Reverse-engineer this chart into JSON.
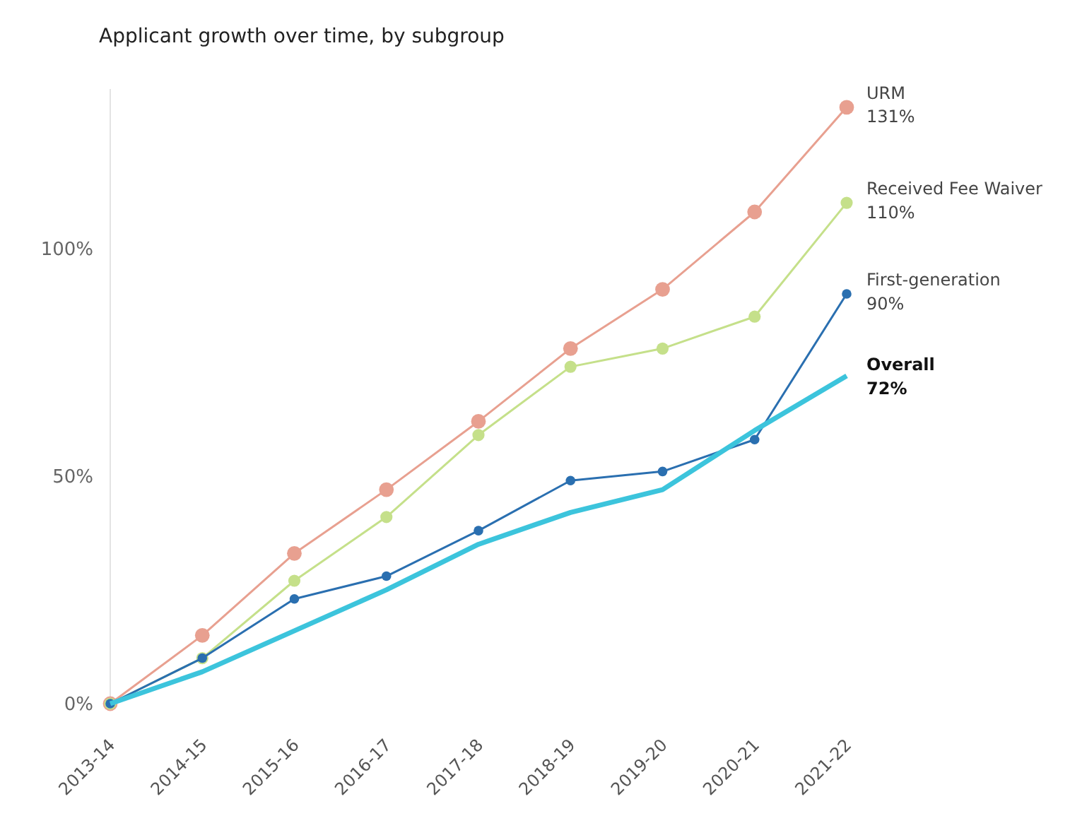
{
  "chart_data": {
    "type": "line",
    "title": "Applicant growth over time, by subgroup",
    "categories": [
      "2013-14",
      "2014-15",
      "2015-16",
      "2016-17",
      "2017-18",
      "2018-19",
      "2019-20",
      "2020-21",
      "2021-22"
    ],
    "series": [
      {
        "name": "URM",
        "color": "#e8a090",
        "values": [
          0,
          15,
          33,
          47,
          62,
          78,
          91,
          108,
          131
        ],
        "value_labels": [
          null,
          null,
          null,
          null,
          null,
          null,
          null,
          null,
          "131%"
        ]
      },
      {
        "name": "Received Fee Waiver",
        "color": "#c5e08a",
        "values": [
          0,
          10,
          27,
          41,
          59,
          74,
          78,
          85,
          110
        ],
        "value_labels": [
          null,
          null,
          null,
          null,
          null,
          null,
          null,
          null,
          "110%"
        ]
      },
      {
        "name": "First-generation",
        "color": "#2a6fb0",
        "values": [
          0,
          10,
          23,
          28,
          38,
          49,
          51,
          58,
          90
        ],
        "value_labels": [
          null,
          null,
          null,
          null,
          null,
          null,
          null,
          null,
          "90%"
        ]
      },
      {
        "name": "Overall",
        "color": "#3cc4dc",
        "values": [
          0,
          7,
          16,
          25,
          35,
          42,
          47,
          60,
          72
        ],
        "value_labels": [
          null,
          null,
          null,
          null,
          null,
          null,
          null,
          null,
          "72%"
        ],
        "marker": "none"
      }
    ],
    "ylim": [
      0,
      135
    ],
    "yticks": [
      {
        "value": 0,
        "label": "0%"
      },
      {
        "value": 50,
        "label": "50%"
      },
      {
        "value": 100,
        "label": "100%"
      }
    ],
    "marker": "circle",
    "grid": false,
    "legend": false
  }
}
